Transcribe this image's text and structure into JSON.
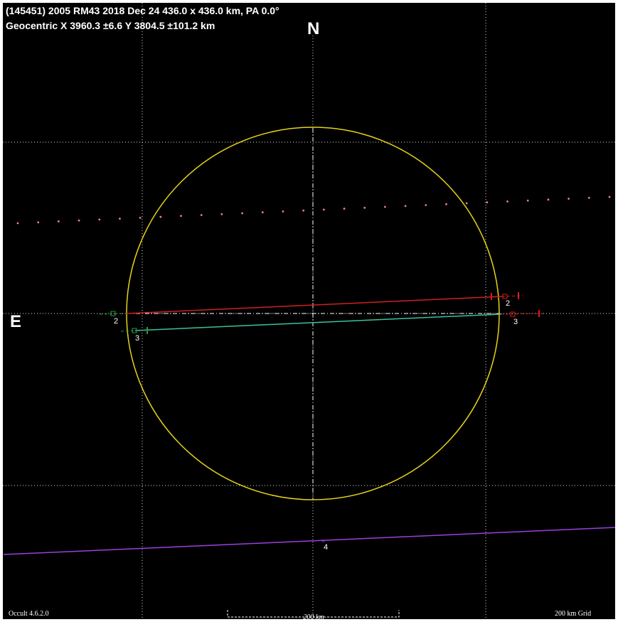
{
  "header": {
    "title": "(145451) 2005 RM43  2018 Dec 24  436.0 x 436.0 km, PA 0.0°",
    "subtitle": "Geocentric  X  3960.3 ±6.6  Y  3804.5 ±101.2 km"
  },
  "compass": {
    "north": "N",
    "east": "E"
  },
  "chords": [
    {
      "label_start": "2",
      "label_end": "2"
    },
    {
      "label_start": "3",
      "label_end": "3"
    },
    {
      "label": "4"
    }
  ],
  "footer": {
    "version": "Occult 4.6.2.0",
    "scale": "200 km",
    "grid": "200 km Grid"
  }
}
